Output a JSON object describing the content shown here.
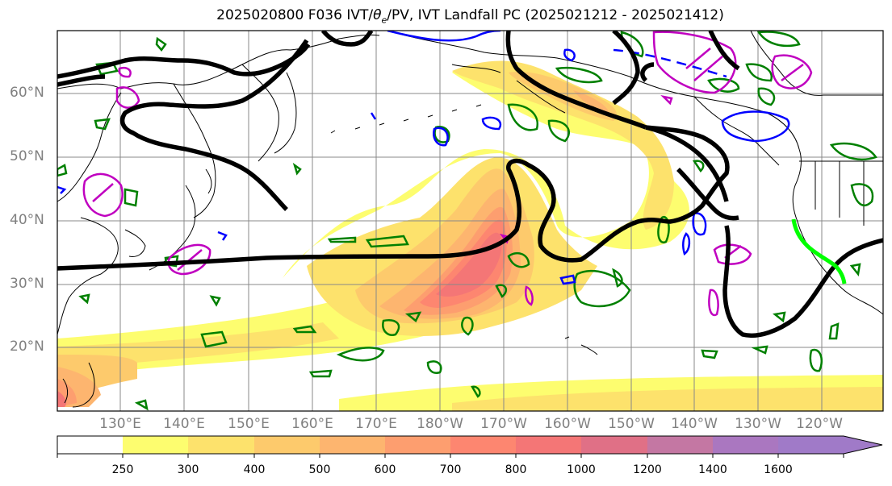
{
  "title_prefix": "2025020800 F036 IVT/",
  "title_theta": "θ",
  "title_theta_sub": "e",
  "title_suffix": "/PV, IVT Landfall PC (2025021212 - 2025021412)",
  "lat_labels": [
    "60°N",
    "50°N",
    "40°N",
    "30°N",
    "20°N"
  ],
  "lon_labels": [
    "130°E",
    "140°E",
    "150°E",
    "160°E",
    "170°E",
    "180°W",
    "170°W",
    "160°W",
    "150°W",
    "140°W",
    "130°W",
    "120°W"
  ],
  "colorbar": {
    "levels": [
      "250",
      "300",
      "400",
      "500",
      "600",
      "700",
      "800",
      "1000",
      "1200",
      "1400",
      "1600"
    ],
    "colors": [
      "#ffffff",
      "#fdfd6f",
      "#fde26c",
      "#fdca6c",
      "#fdb56f",
      "#fd9e6f",
      "#fd8670",
      "#f47676",
      "#e07086",
      "#c477a3",
      "#aa77c0",
      "#a07ac8"
    ],
    "extend": "max"
  },
  "colors": {
    "ivt_contour_black": "#000000",
    "theta_e_green": "#008000",
    "pv_blue": "#0000ff",
    "pv_magenta": "#c000c0",
    "landfall_lime": "#00ff00",
    "grid": "#888888",
    "axis_label_gray": "#808080"
  }
}
